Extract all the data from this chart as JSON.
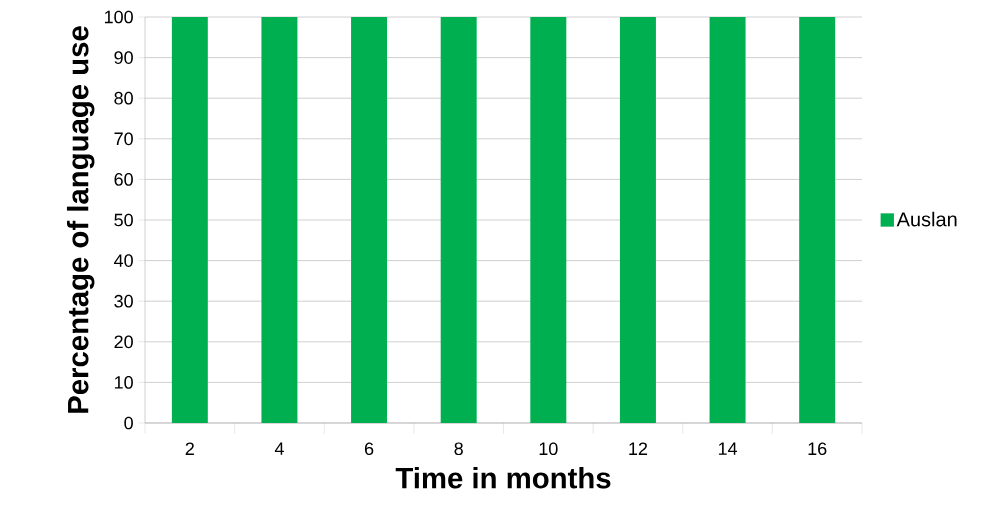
{
  "chart_data": {
    "type": "bar",
    "xlabel": "Time in months",
    "ylabel": "Percentage of language use",
    "categories": [
      "2",
      "4",
      "6",
      "8",
      "10",
      "12",
      "14",
      "16"
    ],
    "series": [
      {
        "name": "Auslan",
        "color": "#00b050",
        "values": [
          100,
          100,
          100,
          100,
          100,
          100,
          100,
          100
        ]
      }
    ],
    "ylim": [
      0,
      100
    ],
    "yticks": [
      0,
      10,
      20,
      30,
      40,
      50,
      60,
      70,
      80,
      90,
      100
    ],
    "grid": "y",
    "legend": "right"
  }
}
